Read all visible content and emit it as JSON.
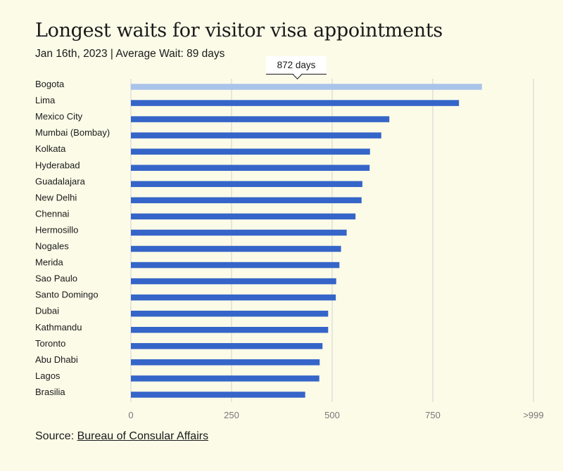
{
  "title": "Longest waits for visitor visa appointments",
  "subtitle": "Jan 16th, 2023 | Average Wait: 89 days",
  "tooltip": "872 days",
  "source": {
    "prefix": "Source:",
    "link_text": "Bureau of Consular Affairs"
  },
  "colors": {
    "background": "#fcfbe8",
    "bar": "#3565c8",
    "highlight_bar": "#a9c3ea",
    "gridline": "#d2d2d2",
    "text": "#1a1a1a",
    "tick_text": "#777777"
  },
  "chart_data": {
    "type": "bar",
    "orientation": "horizontal",
    "title": "Longest waits for visitor visa appointments",
    "subtitle": "Jan 16th, 2023 | Average Wait: 89 days",
    "categories": [
      "Bogota",
      "Lima",
      "Mexico City",
      "Mumbai (Bombay)",
      "Kolkata",
      "Hyderabad",
      "Guadalajara",
      "New Delhi",
      "Chennai",
      "Hermosillo",
      "Nogales",
      "Merida",
      "Sao Paulo",
      "Santo Domingo",
      "Dubai",
      "Kathmandu",
      "Toronto",
      "Abu Dhabi",
      "Lagos",
      "Brasilia"
    ],
    "values": [
      872,
      815,
      642,
      622,
      594,
      593,
      575,
      573,
      558,
      536,
      522,
      518,
      510,
      509,
      490,
      490,
      476,
      469,
      468,
      433
    ],
    "highlighted": "Bogota",
    "xlim": [
      0,
      1000
    ],
    "xticks": [
      0,
      250,
      500,
      750,
      1000
    ],
    "xtick_labels": [
      "0",
      "250",
      "500",
      "750",
      ">999"
    ],
    "xlabel": "",
    "ylabel": "",
    "grid": "vertical"
  }
}
